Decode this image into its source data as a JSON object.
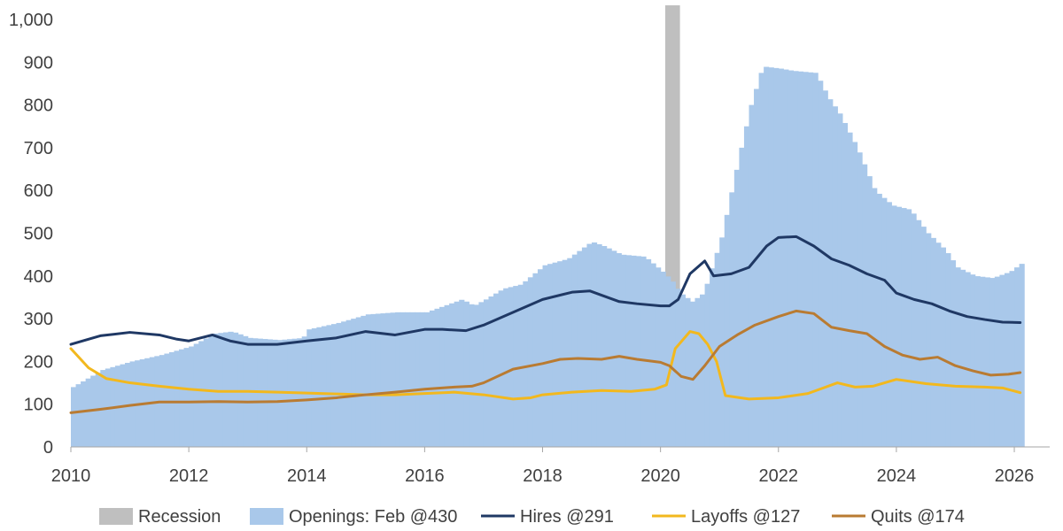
{
  "chart_data": {
    "type": "area",
    "title": "",
    "xlabel": "",
    "ylabel": "",
    "xlim": [
      2010,
      2026.3
    ],
    "ylim": [
      0,
      1000
    ],
    "grid": false,
    "legend_position": "bottom",
    "y_ticks": [
      0,
      100,
      200,
      300,
      400,
      500,
      600,
      700,
      800,
      900,
      1000
    ],
    "y_tick_labels": [
      "0",
      "100",
      "200",
      "300",
      "400",
      "500",
      "600",
      "700",
      "800",
      "900",
      "1,000"
    ],
    "x_ticks": [
      2010,
      2012,
      2014,
      2016,
      2018,
      2020,
      2022,
      2024,
      2026
    ],
    "x_tick_labels": [
      "2010",
      "2012",
      "2014",
      "2016",
      "2018",
      "2020",
      "2022",
      "2024",
      "2026"
    ],
    "recession": {
      "name": "Recession",
      "start": 2020.08,
      "end": 2020.33,
      "color": "#bfbfbf"
    },
    "series": [
      {
        "name": "Openings: Feb @430",
        "kind": "bars",
        "color": "#a9c8ea",
        "points": [
          [
            2010.0,
            140
          ],
          [
            2010.5,
            180
          ],
          [
            2011.0,
            200
          ],
          [
            2011.5,
            215
          ],
          [
            2012.0,
            235
          ],
          [
            2012.4,
            265
          ],
          [
            2012.7,
            270
          ],
          [
            2013.0,
            255
          ],
          [
            2013.5,
            250
          ],
          [
            2013.9,
            255
          ],
          [
            2014.0,
            275
          ],
          [
            2014.5,
            290
          ],
          [
            2015.0,
            310
          ],
          [
            2015.5,
            315
          ],
          [
            2016.0,
            315
          ],
          [
            2016.4,
            335
          ],
          [
            2016.6,
            345
          ],
          [
            2016.8,
            330
          ],
          [
            2017.0,
            345
          ],
          [
            2017.3,
            370
          ],
          [
            2017.6,
            380
          ],
          [
            2018.0,
            425
          ],
          [
            2018.4,
            440
          ],
          [
            2018.8,
            480
          ],
          [
            2019.0,
            470
          ],
          [
            2019.3,
            450
          ],
          [
            2019.7,
            445
          ],
          [
            2020.0,
            410
          ],
          [
            2020.15,
            390
          ],
          [
            2020.3,
            360
          ],
          [
            2020.5,
            340
          ],
          [
            2020.7,
            360
          ],
          [
            2021.0,
            490
          ],
          [
            2021.3,
            680
          ],
          [
            2021.5,
            800
          ],
          [
            2021.7,
            890
          ],
          [
            2022.0,
            885
          ],
          [
            2022.2,
            880
          ],
          [
            2022.6,
            875
          ],
          [
            2022.8,
            820
          ],
          [
            2023.0,
            780
          ],
          [
            2023.3,
            700
          ],
          [
            2023.6,
            600
          ],
          [
            2023.9,
            565
          ],
          [
            2024.2,
            555
          ],
          [
            2024.5,
            500
          ],
          [
            2024.8,
            460
          ],
          [
            2025.0,
            420
          ],
          [
            2025.3,
            400
          ],
          [
            2025.6,
            395
          ],
          [
            2025.9,
            410
          ],
          [
            2026.1,
            430
          ]
        ]
      },
      {
        "name": "Hires @291",
        "kind": "line",
        "color": "#1f3864",
        "points": [
          [
            2010.0,
            240
          ],
          [
            2010.5,
            260
          ],
          [
            2011.0,
            268
          ],
          [
            2011.5,
            262
          ],
          [
            2011.8,
            252
          ],
          [
            2012.0,
            248
          ],
          [
            2012.4,
            262
          ],
          [
            2012.7,
            248
          ],
          [
            2013.0,
            240
          ],
          [
            2013.5,
            240
          ],
          [
            2014.0,
            248
          ],
          [
            2014.5,
            255
          ],
          [
            2015.0,
            270
          ],
          [
            2015.5,
            262
          ],
          [
            2016.0,
            275
          ],
          [
            2016.3,
            275
          ],
          [
            2016.7,
            272
          ],
          [
            2017.0,
            285
          ],
          [
            2017.5,
            315
          ],
          [
            2018.0,
            345
          ],
          [
            2018.5,
            362
          ],
          [
            2018.8,
            365
          ],
          [
            2019.0,
            355
          ],
          [
            2019.3,
            340
          ],
          [
            2019.6,
            335
          ],
          [
            2020.0,
            330
          ],
          [
            2020.15,
            330
          ],
          [
            2020.3,
            345
          ],
          [
            2020.5,
            405
          ],
          [
            2020.75,
            435
          ],
          [
            2020.9,
            400
          ],
          [
            2021.2,
            405
          ],
          [
            2021.5,
            420
          ],
          [
            2021.8,
            470
          ],
          [
            2022.0,
            490
          ],
          [
            2022.3,
            492
          ],
          [
            2022.6,
            470
          ],
          [
            2022.9,
            440
          ],
          [
            2023.2,
            425
          ],
          [
            2023.5,
            405
          ],
          [
            2023.8,
            390
          ],
          [
            2024.0,
            360
          ],
          [
            2024.3,
            345
          ],
          [
            2024.6,
            335
          ],
          [
            2024.9,
            318
          ],
          [
            2025.2,
            305
          ],
          [
            2025.5,
            298
          ],
          [
            2025.8,
            292
          ],
          [
            2026.1,
            291
          ]
        ]
      },
      {
        "name": "Layoffs @127",
        "kind": "line",
        "color": "#f2b81e",
        "points": [
          [
            2010.0,
            230
          ],
          [
            2010.3,
            185
          ],
          [
            2010.6,
            160
          ],
          [
            2011.0,
            150
          ],
          [
            2011.5,
            142
          ],
          [
            2012.0,
            135
          ],
          [
            2012.5,
            130
          ],
          [
            2013.0,
            130
          ],
          [
            2013.5,
            128
          ],
          [
            2014.0,
            126
          ],
          [
            2014.5,
            124
          ],
          [
            2015.0,
            122
          ],
          [
            2015.5,
            122
          ],
          [
            2016.0,
            125
          ],
          [
            2016.5,
            128
          ],
          [
            2017.0,
            122
          ],
          [
            2017.5,
            112
          ],
          [
            2017.8,
            115
          ],
          [
            2018.0,
            122
          ],
          [
            2018.5,
            128
          ],
          [
            2019.0,
            132
          ],
          [
            2019.5,
            130
          ],
          [
            2019.9,
            135
          ],
          [
            2020.1,
            145
          ],
          [
            2020.25,
            230
          ],
          [
            2020.5,
            270
          ],
          [
            2020.65,
            265
          ],
          [
            2020.8,
            240
          ],
          [
            2020.95,
            200
          ],
          [
            2021.1,
            120
          ],
          [
            2021.5,
            112
          ],
          [
            2022.0,
            115
          ],
          [
            2022.5,
            125
          ],
          [
            2023.0,
            150
          ],
          [
            2023.3,
            140
          ],
          [
            2023.6,
            142
          ],
          [
            2024.0,
            158
          ],
          [
            2024.5,
            148
          ],
          [
            2025.0,
            142
          ],
          [
            2025.5,
            140
          ],
          [
            2025.8,
            138
          ],
          [
            2026.1,
            127
          ]
        ]
      },
      {
        "name": "Quits @174",
        "kind": "line",
        "color": "#b97b32",
        "points": [
          [
            2010.0,
            80
          ],
          [
            2010.5,
            88
          ],
          [
            2011.0,
            97
          ],
          [
            2011.5,
            105
          ],
          [
            2012.0,
            105
          ],
          [
            2012.5,
            106
          ],
          [
            2013.0,
            105
          ],
          [
            2013.5,
            106
          ],
          [
            2014.0,
            110
          ],
          [
            2014.5,
            115
          ],
          [
            2015.0,
            122
          ],
          [
            2015.5,
            128
          ],
          [
            2016.0,
            135
          ],
          [
            2016.5,
            140
          ],
          [
            2016.8,
            142
          ],
          [
            2017.0,
            150
          ],
          [
            2017.5,
            182
          ],
          [
            2018.0,
            195
          ],
          [
            2018.3,
            205
          ],
          [
            2018.6,
            207
          ],
          [
            2019.0,
            205
          ],
          [
            2019.3,
            212
          ],
          [
            2019.6,
            205
          ],
          [
            2020.0,
            198
          ],
          [
            2020.15,
            190
          ],
          [
            2020.35,
            165
          ],
          [
            2020.55,
            158
          ],
          [
            2020.75,
            190
          ],
          [
            2021.0,
            235
          ],
          [
            2021.3,
            262
          ],
          [
            2021.6,
            285
          ],
          [
            2022.0,
            305
          ],
          [
            2022.3,
            318
          ],
          [
            2022.6,
            312
          ],
          [
            2022.9,
            280
          ],
          [
            2023.2,
            272
          ],
          [
            2023.5,
            265
          ],
          [
            2023.8,
            235
          ],
          [
            2024.1,
            215
          ],
          [
            2024.4,
            205
          ],
          [
            2024.7,
            210
          ],
          [
            2025.0,
            190
          ],
          [
            2025.3,
            178
          ],
          [
            2025.6,
            168
          ],
          [
            2025.9,
            170
          ],
          [
            2026.1,
            174
          ]
        ]
      }
    ],
    "legend": [
      {
        "label": "Recession",
        "swatch": "box",
        "color": "#bfbfbf"
      },
      {
        "label": "Openings: Feb @430",
        "swatch": "box",
        "color": "#a9c8ea"
      },
      {
        "label": "Hires @291",
        "swatch": "line",
        "color": "#1f3864"
      },
      {
        "label": "Layoffs @127",
        "swatch": "line",
        "color": "#f2b81e"
      },
      {
        "label": "Quits @174",
        "swatch": "line",
        "color": "#b97b32"
      }
    ]
  }
}
